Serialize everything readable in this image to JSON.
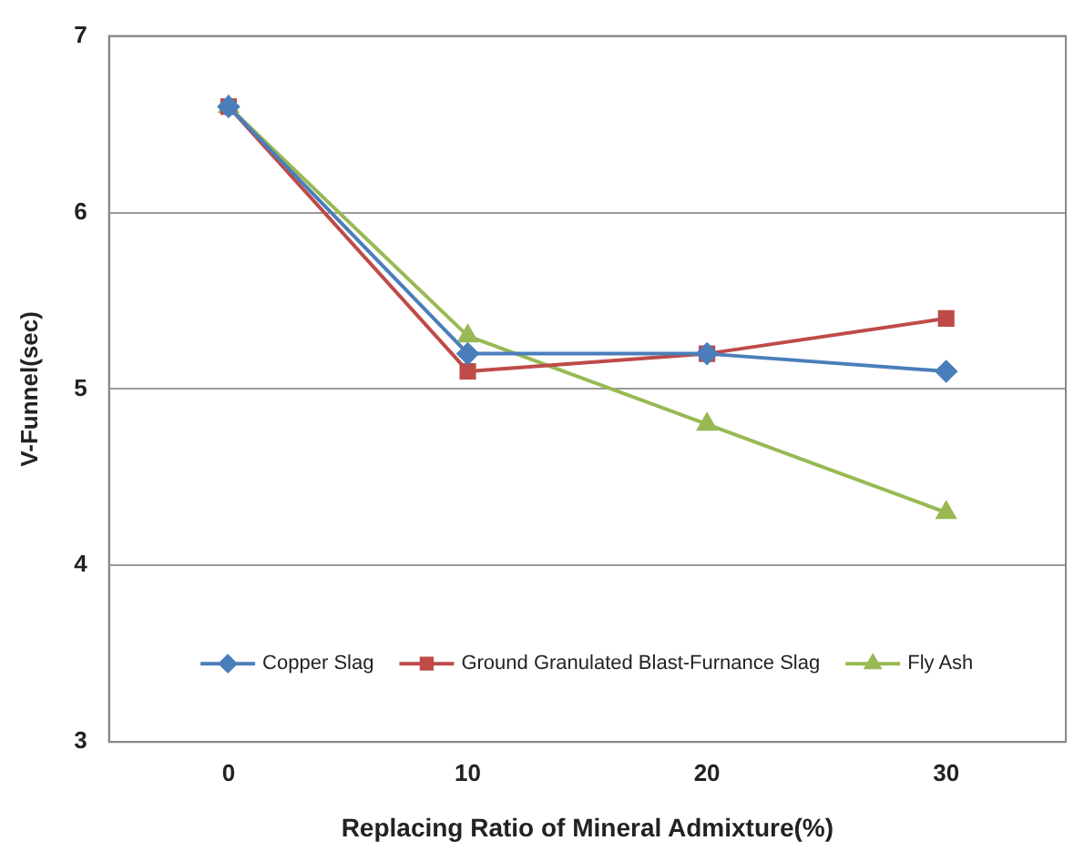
{
  "chart_data": {
    "type": "line",
    "xlabel": "Replacing Ratio of Mineral Admixture(%)",
    "ylabel": "V-Funnel(sec)",
    "categories": [
      "0",
      "10",
      "20",
      "30"
    ],
    "ylim": [
      3,
      7
    ],
    "yticks": [
      3,
      4,
      5,
      6,
      7
    ],
    "grid": "y",
    "legend": "bottom",
    "line_style": "solid",
    "series": [
      {
        "name": "Copper Slag",
        "color": "#4a7ebb",
        "marker": "diamond",
        "values": [
          6.6,
          5.2,
          5.2,
          5.1
        ]
      },
      {
        "name": "Ground Granulated Blast-Furnance Slag",
        "color": "#be4b48",
        "marker": "square",
        "values": [
          6.6,
          5.1,
          5.2,
          5.4
        ]
      },
      {
        "name": "Fly Ash",
        "color": "#98b954",
        "marker": "triangle",
        "values": [
          6.6,
          5.3,
          4.8,
          4.3
        ]
      }
    ]
  }
}
